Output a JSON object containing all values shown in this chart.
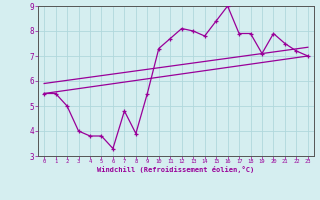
{
  "title": "",
  "xlabel": "Windchill (Refroidissement éolien,°C)",
  "ylabel": "",
  "xlim": [
    -0.5,
    23.5
  ],
  "ylim": [
    3,
    9
  ],
  "yticks": [
    3,
    4,
    5,
    6,
    7,
    8,
    9
  ],
  "xticks": [
    0,
    1,
    2,
    3,
    4,
    5,
    6,
    7,
    8,
    9,
    10,
    11,
    12,
    13,
    14,
    15,
    16,
    17,
    18,
    19,
    20,
    21,
    22,
    23
  ],
  "bg_color": "#d5eef0",
  "grid_color": "#b0d8dc",
  "line_color": "#990099",
  "spine_color": "#555555",
  "line1_x": [
    0,
    1,
    2,
    3,
    4,
    5,
    6,
    7,
    8,
    9,
    10,
    11,
    12,
    13,
    14,
    15,
    16,
    17,
    18,
    19,
    20,
    21,
    22,
    23
  ],
  "line1_y": [
    5.5,
    5.5,
    5.0,
    4.0,
    3.8,
    3.8,
    3.3,
    4.8,
    3.9,
    5.5,
    7.3,
    7.7,
    8.1,
    8.0,
    7.8,
    8.4,
    9.0,
    7.9,
    7.9,
    7.1,
    7.9,
    7.5,
    7.2,
    7.0
  ],
  "line2_x": [
    0,
    23
  ],
  "line2_y": [
    5.5,
    7.0
  ],
  "line3_x": [
    0,
    23
  ],
  "line3_y": [
    5.9,
    7.35
  ],
  "figsize": [
    3.2,
    2.0
  ],
  "dpi": 100
}
